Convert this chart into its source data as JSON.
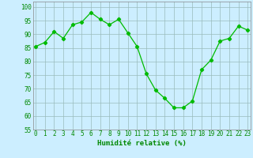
{
  "x": [
    0,
    1,
    2,
    3,
    4,
    5,
    6,
    7,
    8,
    9,
    10,
    11,
    12,
    13,
    14,
    15,
    16,
    17,
    18,
    19,
    20,
    21,
    22,
    23
  ],
  "y": [
    85.5,
    87,
    91,
    88.5,
    93.5,
    94.5,
    98,
    95.5,
    93.5,
    95.5,
    90.5,
    85.5,
    75.5,
    69.5,
    66.5,
    63,
    63,
    65.5,
    77,
    80.5,
    87.5,
    88.5,
    93,
    91.5
  ],
  "line_color": "#00bb00",
  "marker": "D",
  "marker_size": 2.2,
  "bg_color": "#cceeff",
  "grid_color": "#99bbbb",
  "xlabel": "Humidité relative (%)",
  "xlabel_color": "#008800",
  "xlabel_fontsize": 6.5,
  "tick_color": "#008800",
  "tick_fontsize": 5.5,
  "ylim": [
    55,
    102
  ],
  "xlim": [
    -0.3,
    23.3
  ],
  "yticks": [
    55,
    60,
    65,
    70,
    75,
    80,
    85,
    90,
    95,
    100
  ],
  "xticks": [
    0,
    1,
    2,
    3,
    4,
    5,
    6,
    7,
    8,
    9,
    10,
    11,
    12,
    13,
    14,
    15,
    16,
    17,
    18,
    19,
    20,
    21,
    22,
    23
  ]
}
